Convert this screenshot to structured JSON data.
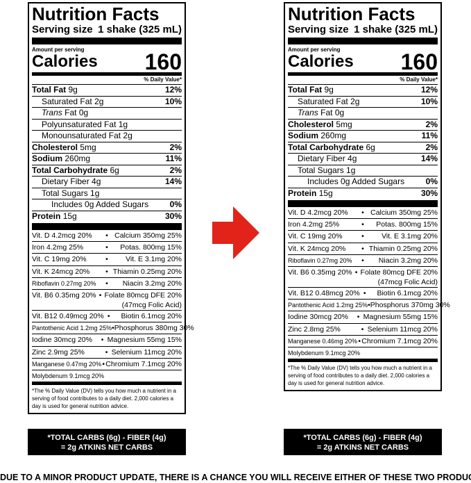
{
  "labels": [
    {
      "title": "Nutrition Facts",
      "serving_label": "Serving size",
      "serving_value": "1 shake (325 mL)",
      "amount_per_serving": "Amount per serving",
      "calories_label": "Calories",
      "calories_value": "160",
      "dv_header": "% Daily Value*",
      "nutrients": [
        {
          "name": "Total Fat",
          "amount": "9g",
          "dv": "12%"
        },
        {
          "name": "Saturated Fat",
          "amount": "2g",
          "dv": "10%"
        },
        {
          "name": "Trans",
          "name2": "Fat 0g"
        },
        {
          "name": "Polyunsaturated Fat 1g"
        },
        {
          "name": "Monounsaturated Fat 2g"
        },
        {
          "name": "Cholesterol",
          "amount": "5mg",
          "dv": "2%"
        },
        {
          "name": "Sodium",
          "amount": "260mg",
          "dv": "11%"
        },
        {
          "name": "Total Carbohydrate",
          "amount": "6g",
          "dv": "2%"
        },
        {
          "name": "Dietary Fiber 4g",
          "dv": "14%"
        },
        {
          "name": "Total Sugars 1g"
        },
        {
          "name": "Includes 0g Added Sugars",
          "dv": "0%"
        },
        {
          "name": "Protein",
          "amount": "15g",
          "dv": "30%"
        }
      ],
      "vitamins": [
        {
          "left": "Vit. D 4.2mcg 20%",
          "right": "Calcium 350mg 25%"
        },
        {
          "left": "Iron 4.2mg 25%",
          "right": "Potas. 800mg 15%"
        },
        {
          "left": "Vit. C 19mg 20%",
          "right": "Vit. E 3.1mg 20%"
        },
        {
          "left": "Vit. K 24mcg 20%",
          "right": "Thiamin 0.25mg 20%"
        },
        {
          "left": "Riboflavin 0.27mg 20%",
          "right": "Niacin 3.2mg 20%"
        },
        {
          "left": "Vit. B6 0.35mg 20%",
          "right": "Folate 80mcg DFE 20%",
          "right2": "(47mcg Folic Acid)"
        },
        {
          "left": "Vit. B12 0.49mcg 20%",
          "right": "Biotin 6.1mcg 20%"
        },
        {
          "left": "Pantothenic Acid 1.2mg 25%",
          "right": "Phosphorus 380mg 30%"
        },
        {
          "left": "Iodine 30mcg 20%",
          "right": "Magnesium 55mg 15%"
        },
        {
          "left": "Zinc 2.9mg 25%",
          "right": "Selenium 11mcg 20%"
        },
        {
          "left": "Manganese 0.47mg 20%",
          "right": "Chromium 7.1mcg 20%"
        },
        {
          "left": "Molybdenum 9.1mcg 20%",
          "right": ""
        }
      ],
      "footnote": "*The % Daily Value (DV) tells you how much a nutrient in a serving of food contributes to a daily diet. 2,000 calories a day is used for general nutrition advice.",
      "carbs_line1": "*TOTAL CARBS (6g) - FIBER (4g)",
      "carbs_line2": "= 2g ATKINS NET CARBS"
    },
    {
      "title": "Nutrition Facts",
      "serving_label": "Serving size",
      "serving_value": "1 shake (325 mL)",
      "amount_per_serving": "Amount per serving",
      "calories_label": "Calories",
      "calories_value": "160",
      "dv_header": "% Daily Value*",
      "nutrients": [
        {
          "name": "Total Fat",
          "amount": "9g",
          "dv": "12%"
        },
        {
          "name": "Saturated Fat",
          "amount": "2g",
          "dv": "10%"
        },
        {
          "name": "Trans",
          "name2": "Fat 0g"
        },
        {
          "name": "Cholesterol",
          "amount": "5mg",
          "dv": "2%"
        },
        {
          "name": "Sodium",
          "amount": "260mg",
          "dv": "11%"
        },
        {
          "name": "Total Carbohydrate",
          "amount": "6g",
          "dv": "2%"
        },
        {
          "name": "Dietary Fiber 4g",
          "dv": "14%"
        },
        {
          "name": "Total Sugars 1g"
        },
        {
          "name": "Includes 0g Added Sugars",
          "dv": "0%"
        },
        {
          "name": "Protein",
          "amount": "15g",
          "dv": "30%"
        }
      ],
      "vitamins": [
        {
          "left": "Vit. D 4.2mcg 20%",
          "right": "Calcium 350mg 25%"
        },
        {
          "left": "Iron 4.2mg 25%",
          "right": "Potas. 800mg 15%"
        },
        {
          "left": "Vit. C 19mg 20%",
          "right": "Vit. E 3.1mg 20%"
        },
        {
          "left": "Vit. K 24mcg 20%",
          "right": "Thiamin 0.25mg 20%"
        },
        {
          "left": "Riboflavin 0.27mg 20%",
          "right": "Niacin 3.2mg 20%"
        },
        {
          "left": "Vit. B6 0.35mg 20%",
          "right": "Folate 80mcg DFE 20%",
          "right2": "(47mcg Folic Acid)"
        },
        {
          "left": "Vit. B12 0.48mcg 20%",
          "right": "Biotin 6.1mcg 20%"
        },
        {
          "left": "Pantothenic Acid 1.2mg 25%",
          "right": "Phosphorus 370mg 30%"
        },
        {
          "left": "Iodine 30mcg 20%",
          "right": "Magnesium 55mg 15%"
        },
        {
          "left": "Zinc 2.8mg 25%",
          "right": "Selenium 11mcg 20%"
        },
        {
          "left": "Manganese 0.46mg 20%",
          "right": "Chromium 7.1mcg 20%"
        },
        {
          "left": "Molybdenum 9.1mcg 20%",
          "right": ""
        }
      ],
      "footnote": "*The % Daily Value (DV) tells you how much a nutrient in a serving of food contributes to a daily diet. 2,000 calories a day is used for general nutrition advice.",
      "carbs_line1": "*TOTAL CARBS (6g) - FIBER (4g)",
      "carbs_line2": "= 2g ATKINS NET CARBS"
    }
  ],
  "arrow_color": "#e2231a",
  "bottom_text": "DUE TO A MINOR PRODUCT UPDATE, THERE IS A CHANCE YOU WILL RECEIVE EITHER OF THESE TWO PRODUCTS"
}
